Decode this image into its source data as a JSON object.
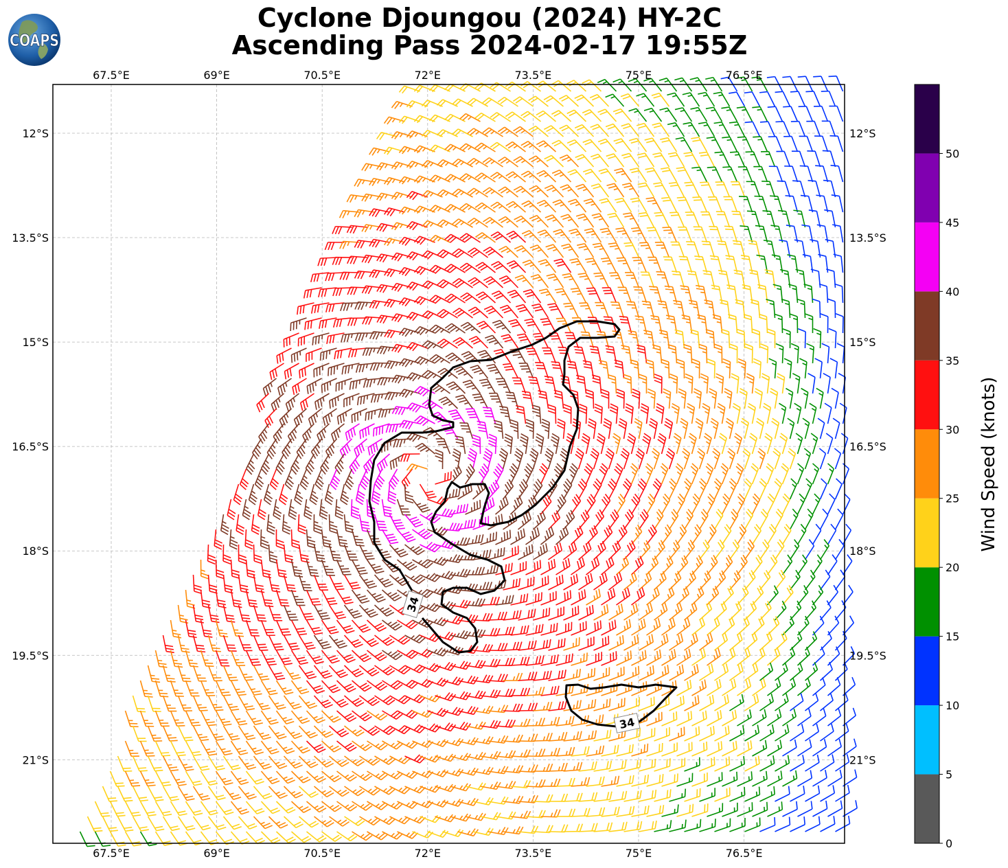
{
  "title": {
    "line1": "Cyclone Djoungou (2024) HY-2C",
    "line2": "Ascending Pass 2024-02-17 19:55Z"
  },
  "logo_text": "COAPS",
  "map": {
    "lon_ticks": [
      "67.5°E",
      "69°E",
      "70.5°E",
      "72°E",
      "73.5°E",
      "75°E",
      "76.5°E"
    ],
    "lat_ticks": [
      "12°S",
      "13.5°S",
      "15°S",
      "16.5°S",
      "18°S",
      "19.5°S",
      "21°S"
    ],
    "lon_range": [
      66.67,
      77.93
    ],
    "lat_range": [
      -22.2,
      -11.3
    ],
    "gridlines": true,
    "storm_center": {
      "lon": 72.0,
      "lat": -16.9
    },
    "contour_label": "34",
    "contour_level_knots": 34
  },
  "colorbar": {
    "label": "Wind Speed (knots)",
    "tick_labels": [
      "0",
      "5",
      "10",
      "15",
      "20",
      "25",
      "30",
      "35",
      "40",
      "45",
      "50"
    ],
    "bins": [
      {
        "min": 0,
        "max": 5,
        "color": "#595959"
      },
      {
        "min": 5,
        "max": 10,
        "color": "#00bfff"
      },
      {
        "min": 10,
        "max": 15,
        "color": "#0033ff"
      },
      {
        "min": 15,
        "max": 20,
        "color": "#009000"
      },
      {
        "min": 20,
        "max": 25,
        "color": "#ffd21a"
      },
      {
        "min": 25,
        "max": 30,
        "color": "#ff8c0a"
      },
      {
        "min": 30,
        "max": 35,
        "color": "#ff1010"
      },
      {
        "min": 35,
        "max": 40,
        "color": "#7f3a26"
      },
      {
        "min": 40,
        "max": 45,
        "color": "#f400f4"
      },
      {
        "min": 45,
        "max": 50,
        "color": "#8000b0"
      },
      {
        "min": 50,
        "max": 55,
        "color": "#2a004a"
      }
    ]
  }
}
